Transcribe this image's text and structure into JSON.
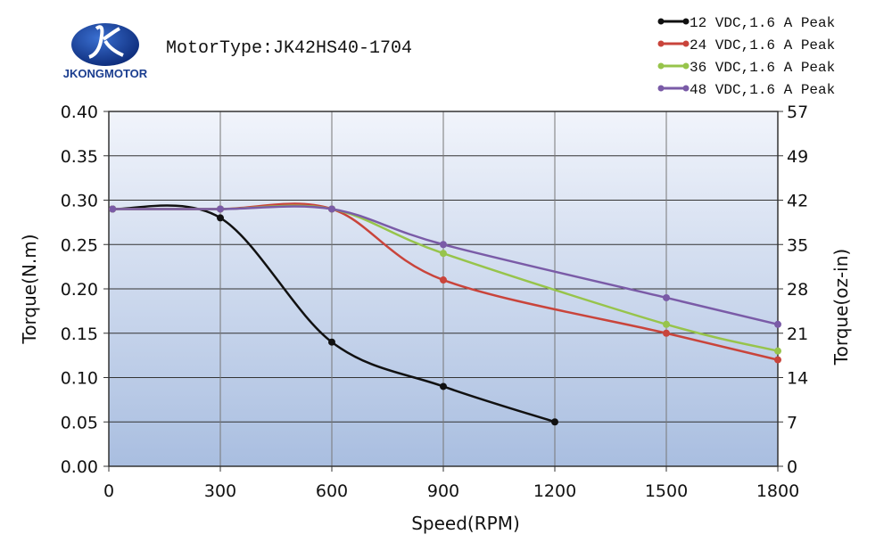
{
  "logo": {
    "text": "JKONGMOTOR",
    "color": "#1a3d8f"
  },
  "motor_type": "MotorType:JK42HS40-1704",
  "chart_data": {
    "type": "line",
    "title": "MotorType:JK42HS40-1704",
    "xlabel": "Speed(RPM)",
    "ylabel": "Torque(N.m)",
    "y2label": "Torque(oz-in)",
    "xlim": [
      0,
      1800
    ],
    "ylim": [
      0,
      0.4
    ],
    "xticks": [
      0,
      300,
      600,
      900,
      1200,
      1500,
      1800
    ],
    "xtick_labels": [
      "0",
      "300",
      "600",
      "900",
      "1200",
      "1500",
      "1800"
    ],
    "yticks": [
      0,
      0.05,
      0.1,
      0.15,
      0.2,
      0.25,
      0.3,
      0.35,
      0.4
    ],
    "ytick_labels": [
      "0.00",
      "0.05",
      "0.10",
      "0.15",
      "0.20",
      "0.25",
      "0.30",
      "0.35",
      "0.40"
    ],
    "y2tick_labels": [
      "0",
      "7",
      "14",
      "21",
      "28",
      "35",
      "42",
      "49",
      "57"
    ],
    "grid": true,
    "legend_position": "top-right",
    "series": [
      {
        "name": "12 VDC,1.6 A Peak",
        "color": "#111111",
        "x": [
          10,
          300,
          600,
          900,
          1200
        ],
        "y": [
          0.29,
          0.28,
          0.14,
          0.09,
          0.05
        ]
      },
      {
        "name": "24 VDC,1.6 A Peak",
        "color": "#c9443b",
        "x": [
          10,
          300,
          600,
          900,
          1500,
          1800
        ],
        "y": [
          0.29,
          0.29,
          0.29,
          0.21,
          0.15,
          0.12
        ]
      },
      {
        "name": "36 VDC,1.6 A Peak",
        "color": "#97c44b",
        "x": [
          10,
          300,
          600,
          900,
          1500,
          1800
        ],
        "y": [
          0.29,
          0.29,
          0.29,
          0.24,
          0.16,
          0.13
        ]
      },
      {
        "name": "48 VDC,1.6 A Peak",
        "color": "#7a5ba7",
        "x": [
          10,
          300,
          600,
          900,
          1500,
          1800
        ],
        "y": [
          0.29,
          0.29,
          0.29,
          0.25,
          0.19,
          0.16
        ]
      }
    ]
  }
}
